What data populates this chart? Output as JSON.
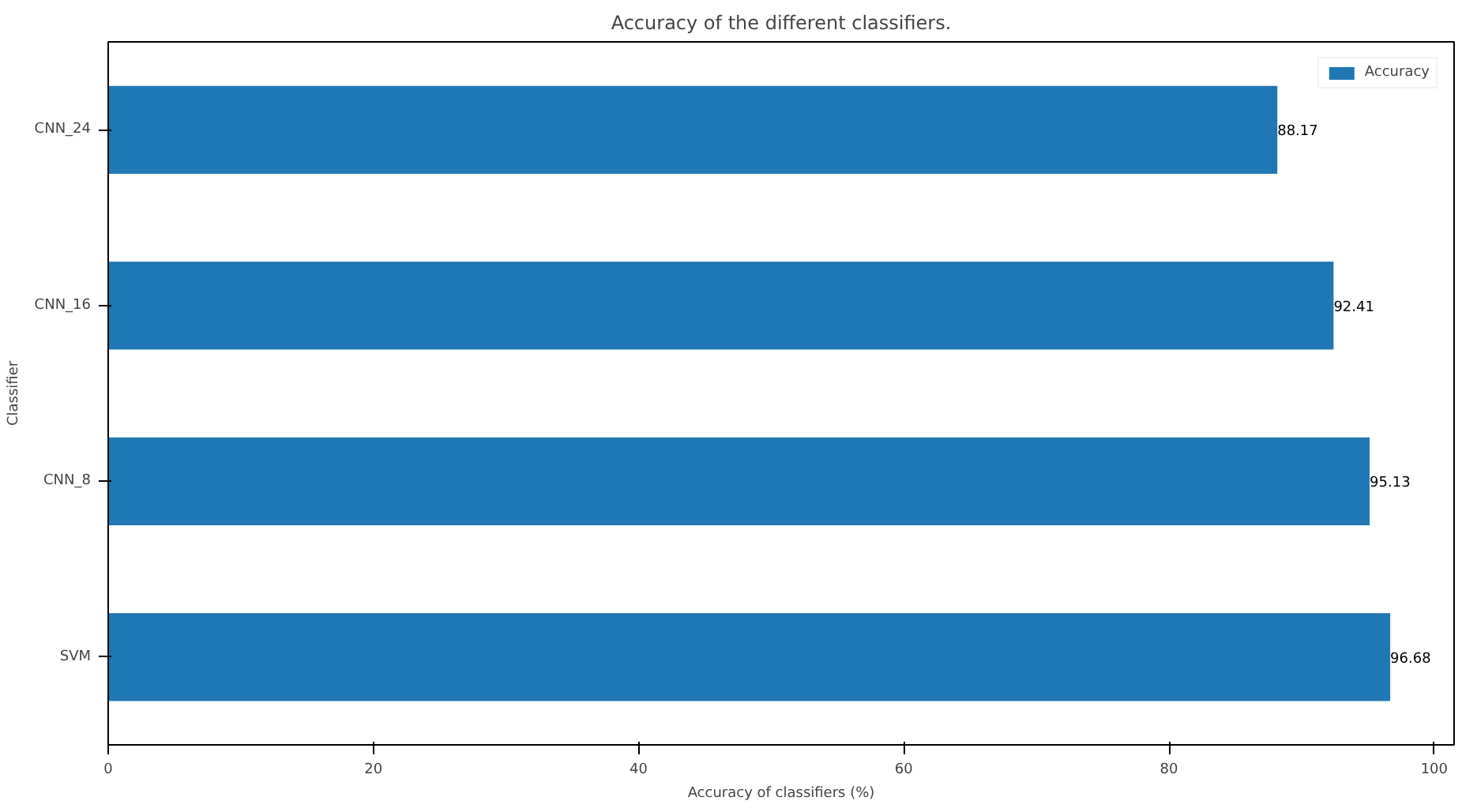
{
  "chart_data": {
    "type": "bar",
    "orientation": "horizontal",
    "title": "Accuracy of the different classifiers.",
    "xlabel": "Accuracy of classifiers (%)",
    "ylabel": "Classifier",
    "categories": [
      "CNN_24",
      "CNN_16",
      "CNN_8",
      "SVM"
    ],
    "series": [
      {
        "name": "Accuracy",
        "color": "#1f77b4",
        "values": [
          88.17,
          92.41,
          95.13,
          96.68
        ]
      }
    ],
    "xlim": [
      0,
      101.5
    ],
    "xticks": [
      0,
      20,
      40,
      60,
      80,
      100
    ],
    "data_labels": true,
    "legend": "top right",
    "grid": false
  }
}
